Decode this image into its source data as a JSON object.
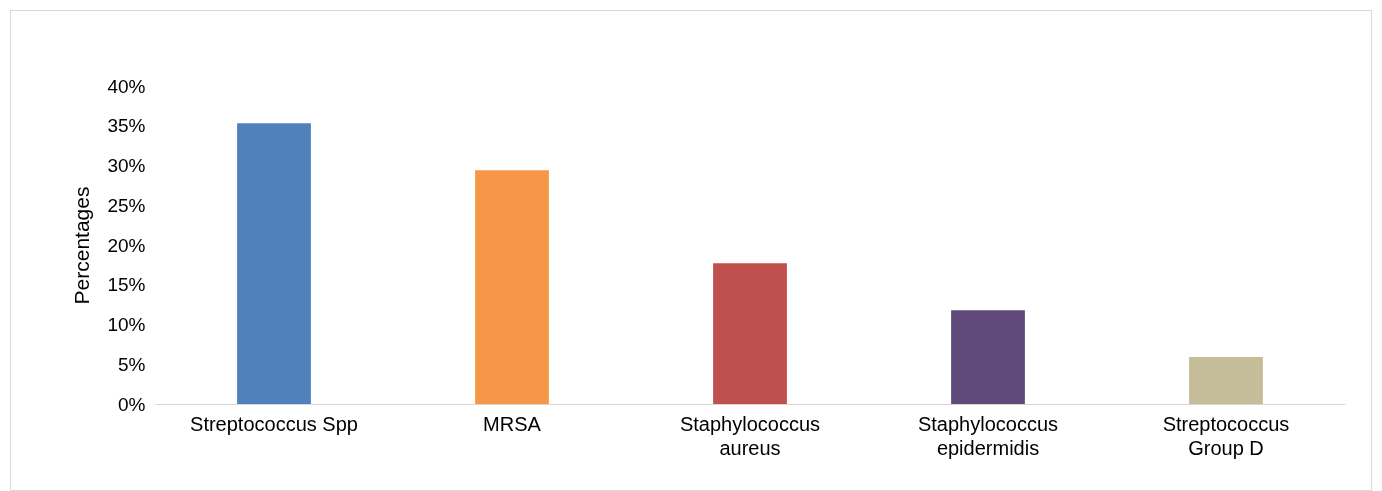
{
  "chart_data": {
    "type": "bar",
    "ylabel": "Percentages",
    "categories": [
      "Streptococcus Spp",
      "MRSA",
      "Staphylococcus aureus",
      "Staphylococcus epidermidis",
      "Streptococcus Group D"
    ],
    "values": [
      35.3,
      29.4,
      17.7,
      11.8,
      5.9
    ],
    "colors": [
      "#4f81bd",
      "#f79646",
      "#c0504d",
      "#604a7b",
      "#c4bd97"
    ],
    "ylim": [
      0,
      40
    ],
    "yticks": [
      {
        "value": 0,
        "label": "0%"
      },
      {
        "value": 5,
        "label": "5%"
      },
      {
        "value": 10,
        "label": "10%"
      },
      {
        "value": 15,
        "label": "15%"
      },
      {
        "value": 20,
        "label": "20%"
      },
      {
        "value": 25,
        "label": "25%"
      },
      {
        "value": 30,
        "label": "30%"
      },
      {
        "value": 35,
        "label": "35%"
      },
      {
        "value": 40,
        "label": "40%"
      }
    ],
    "grid": false
  }
}
